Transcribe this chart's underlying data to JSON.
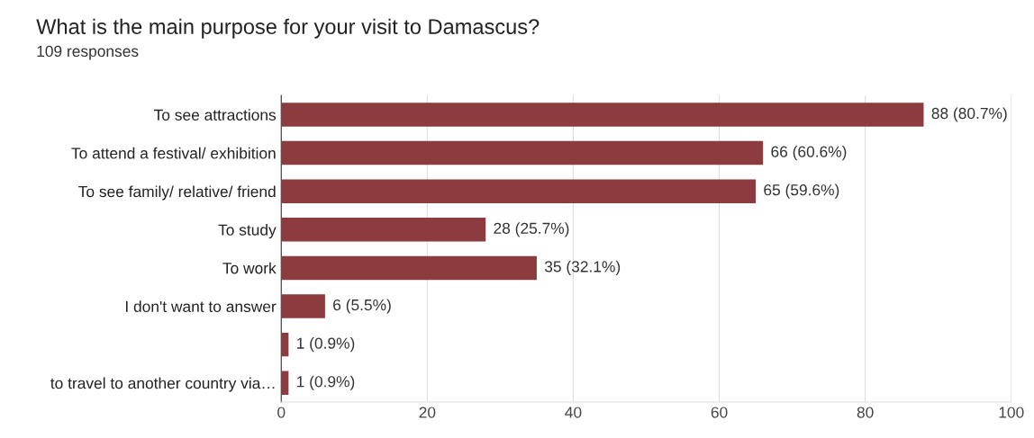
{
  "chart_data": {
    "type": "bar",
    "orientation": "horizontal",
    "title": "What is the main purpose for your visit to Damascus?",
    "subtitle": "109 responses",
    "categories": [
      "To see attractions",
      "To attend a festival/ exhibition",
      "To see family/ relative/ friend",
      "To study",
      "To work",
      "I don't want to answer",
      null,
      "to travel to another country via…"
    ],
    "values": [
      88,
      66,
      65,
      28,
      35,
      6,
      1,
      1
    ],
    "value_labels": [
      "88 (80.7%)",
      "66 (60.6%)",
      "65 (59.6%)",
      "28 (25.7%)",
      "35 (32.1%)",
      "6 (5.5%)",
      "1 (0.9%)",
      "1 (0.9%)"
    ],
    "color": "#8c3b3e",
    "xlim": [
      0,
      100
    ],
    "xticks": [
      0,
      20,
      40,
      60,
      80,
      100
    ],
    "grid": "x",
    "legend": false
  }
}
